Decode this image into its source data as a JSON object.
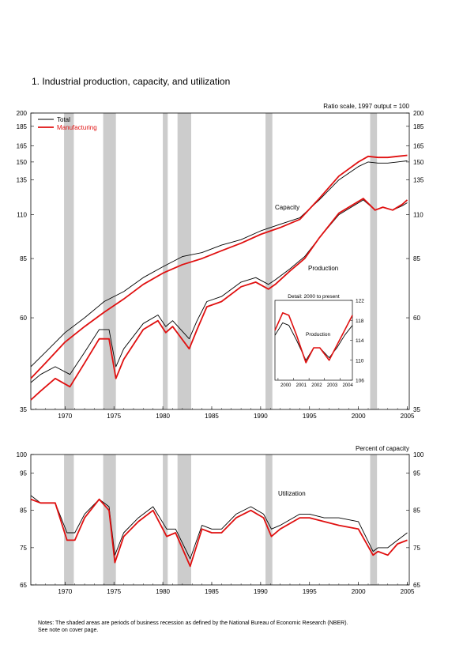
{
  "title": "1.  Industrial production, capacity, and utilization",
  "notes": {
    "line1": "Notes: The shaded areas are periods of business recession as defined by the National Bureau of Economic Research (NBER).",
    "line2": "See note on cover page."
  },
  "colors": {
    "total": "#000000",
    "manufacturing": "#e01010",
    "recession": "#cccccc"
  },
  "chart_data": [
    {
      "type": "line",
      "scale": "log",
      "note": "Ratio scale, 1997 output = 100",
      "y_ticks": [
        35,
        60,
        85,
        110,
        135,
        150,
        165,
        185,
        200
      ],
      "ylim": [
        35,
        200
      ],
      "xlim": [
        1966.5,
        2005.2
      ],
      "x_ticks": [
        1970,
        1975,
        1980,
        1985,
        1990,
        1995,
        2000,
        2005
      ],
      "recessions": [
        [
          1969.9,
          1970.9
        ],
        [
          1973.9,
          1975.2
        ],
        [
          1980.0,
          1980.5
        ],
        [
          1981.5,
          1982.9
        ],
        [
          1990.5,
          1991.2
        ],
        [
          2001.2,
          2001.9
        ]
      ],
      "legend": [
        {
          "name": "Total",
          "color": "#000000"
        },
        {
          "name": "Manufacturing",
          "color": "#e01010"
        }
      ],
      "annotations": [
        "Capacity",
        "Production"
      ],
      "series": [
        {
          "name": "Total capacity",
          "x": [
            1966.5,
            1968,
            1970,
            1972,
            1974,
            1976,
            1978,
            1980,
            1982,
            1984,
            1986,
            1988,
            1990,
            1992,
            1994,
            1996,
            1998,
            2000,
            2001,
            2002,
            2003,
            2004,
            2005
          ],
          "y": [
            45,
            49,
            55,
            60,
            66,
            70,
            76,
            81,
            86,
            88,
            92,
            95,
            100,
            104,
            108,
            120,
            135,
            146,
            150,
            149,
            149,
            150,
            151
          ]
        },
        {
          "name": "Manufacturing capacity",
          "x": [
            1966.5,
            1968,
            1970,
            1972,
            1974,
            1976,
            1978,
            1980,
            1982,
            1984,
            1986,
            1988,
            1990,
            1992,
            1994,
            1996,
            1998,
            2000,
            2001,
            2002,
            2003,
            2004,
            2005
          ],
          "y": [
            42,
            46,
            52,
            57,
            62,
            67,
            73,
            78,
            82,
            85,
            89,
            93,
            98,
            102,
            107,
            121,
            138,
            150,
            155,
            154,
            154,
            155,
            156
          ]
        },
        {
          "name": "Total production",
          "x": [
            1966.5,
            1967.5,
            1969,
            1970.5,
            1972,
            1973.5,
            1974.5,
            1975.2,
            1976,
            1978,
            1979.5,
            1980.3,
            1981,
            1982.7,
            1983.5,
            1984.5,
            1986,
            1988,
            1989.5,
            1990.8,
            1991.5,
            1993,
            1994.5,
            1996,
            1998,
            2000.5,
            2001.7,
            2002.5,
            2003.5,
            2004.5,
            2005
          ],
          "y": [
            41,
            43,
            45,
            43,
            49,
            56,
            56,
            45,
            50,
            58,
            61,
            57,
            59,
            53,
            59,
            66,
            68,
            74,
            76,
            73,
            75,
            80,
            86,
            96,
            110,
            120,
            113,
            115,
            113,
            116,
            118
          ]
        },
        {
          "name": "Manufacturing production",
          "x": [
            1966.5,
            1967.5,
            1969,
            1970.5,
            1972,
            1973.5,
            1974.5,
            1975.2,
            1976,
            1978,
            1979.5,
            1980.3,
            1981,
            1982.7,
            1983.5,
            1984.5,
            1986,
            1988,
            1989.5,
            1990.8,
            1991.5,
            1993,
            1994.5,
            1996,
            1998,
            2000.5,
            2001.7,
            2002.5,
            2003.5,
            2004.5,
            2005
          ],
          "y": [
            37,
            39,
            42,
            40,
            46,
            53,
            53,
            42,
            47,
            56,
            59,
            55,
            57,
            50,
            56,
            64,
            66,
            72,
            74,
            71,
            73,
            79,
            85,
            96,
            111,
            121,
            113,
            115,
            113,
            117,
            120
          ]
        }
      ]
    },
    {
      "type": "line",
      "title": "Detail: 2000 to present",
      "annotation": "Production",
      "x_ticks": [
        2000,
        2001,
        2002,
        2003,
        2004
      ],
      "y_ticks": [
        106,
        110,
        114,
        118,
        122
      ],
      "ylim": [
        106,
        122
      ],
      "xlim": [
        1999.8,
        2004.8
      ],
      "series": [
        {
          "name": "Total",
          "x": [
            1999.8,
            2000.3,
            2000.7,
            2001.2,
            2001.8,
            2002.3,
            2002.7,
            2003.3,
            2003.8,
            2004.3,
            2004.8
          ],
          "y": [
            115,
            117.5,
            117,
            114,
            110,
            112.5,
            112.5,
            110.5,
            112.5,
            115,
            117
          ]
        },
        {
          "name": "Manufacturing",
          "x": [
            1999.8,
            2000.3,
            2000.7,
            2001.2,
            2001.8,
            2002.3,
            2002.7,
            2003.3,
            2003.8,
            2004.3,
            2004.8
          ],
          "y": [
            116,
            119.5,
            119,
            115,
            109.5,
            112.5,
            112.5,
            110,
            113,
            116,
            119
          ]
        }
      ]
    },
    {
      "type": "line",
      "label": "Percent of capacity",
      "annotation": "Utilization",
      "y_ticks": [
        65,
        75,
        85,
        95,
        100
      ],
      "ylim": [
        65,
        100
      ],
      "xlim": [
        1966.5,
        2005.2
      ],
      "x_ticks": [
        1970,
        1975,
        1980,
        1985,
        1990,
        1995,
        2000,
        2005
      ],
      "recessions": [
        [
          1969.9,
          1970.9
        ],
        [
          1973.9,
          1975.2
        ],
        [
          1980.0,
          1980.5
        ],
        [
          1981.5,
          1982.9
        ],
        [
          1990.5,
          1991.2
        ],
        [
          2001.2,
          2001.9
        ]
      ],
      "series": [
        {
          "name": "Total",
          "x": [
            1966.5,
            1967.5,
            1969,
            1970.2,
            1971,
            1972,
            1973.5,
            1974.5,
            1975.1,
            1976,
            1977.5,
            1979,
            1980.4,
            1981.3,
            1982.8,
            1984,
            1985,
            1986,
            1987.5,
            1989,
            1990.3,
            1991.1,
            1992,
            1994,
            1995,
            1996.5,
            1998,
            2000,
            2001.5,
            2002,
            2003,
            2004,
            2005
          ],
          "y": [
            89,
            87,
            87,
            79,
            79,
            84,
            88,
            86,
            73,
            79,
            83,
            86,
            80,
            80,
            72,
            81,
            80,
            80,
            84,
            86,
            84,
            80,
            81,
            84,
            84,
            83,
            83,
            82,
            74,
            75,
            75,
            77,
            79
          ]
        },
        {
          "name": "Manufacturing",
          "x": [
            1966.5,
            1967.5,
            1969,
            1970.2,
            1971,
            1972,
            1973.5,
            1974.5,
            1975.1,
            1976,
            1977.5,
            1979,
            1980.4,
            1981.3,
            1982.8,
            1984,
            1985,
            1986,
            1987.5,
            1989,
            1990.3,
            1991.1,
            1992,
            1994,
            1995,
            1996.5,
            1998,
            2000,
            2001.5,
            2002,
            2003,
            2004,
            2005
          ],
          "y": [
            88,
            87,
            87,
            77,
            77,
            83,
            88,
            85,
            71,
            78,
            82,
            85,
            78,
            79,
            70,
            80,
            79,
            79,
            83,
            85,
            83,
            78,
            80,
            83,
            83,
            82,
            81,
            80,
            73,
            74,
            73,
            76,
            77
          ]
        }
      ]
    }
  ]
}
